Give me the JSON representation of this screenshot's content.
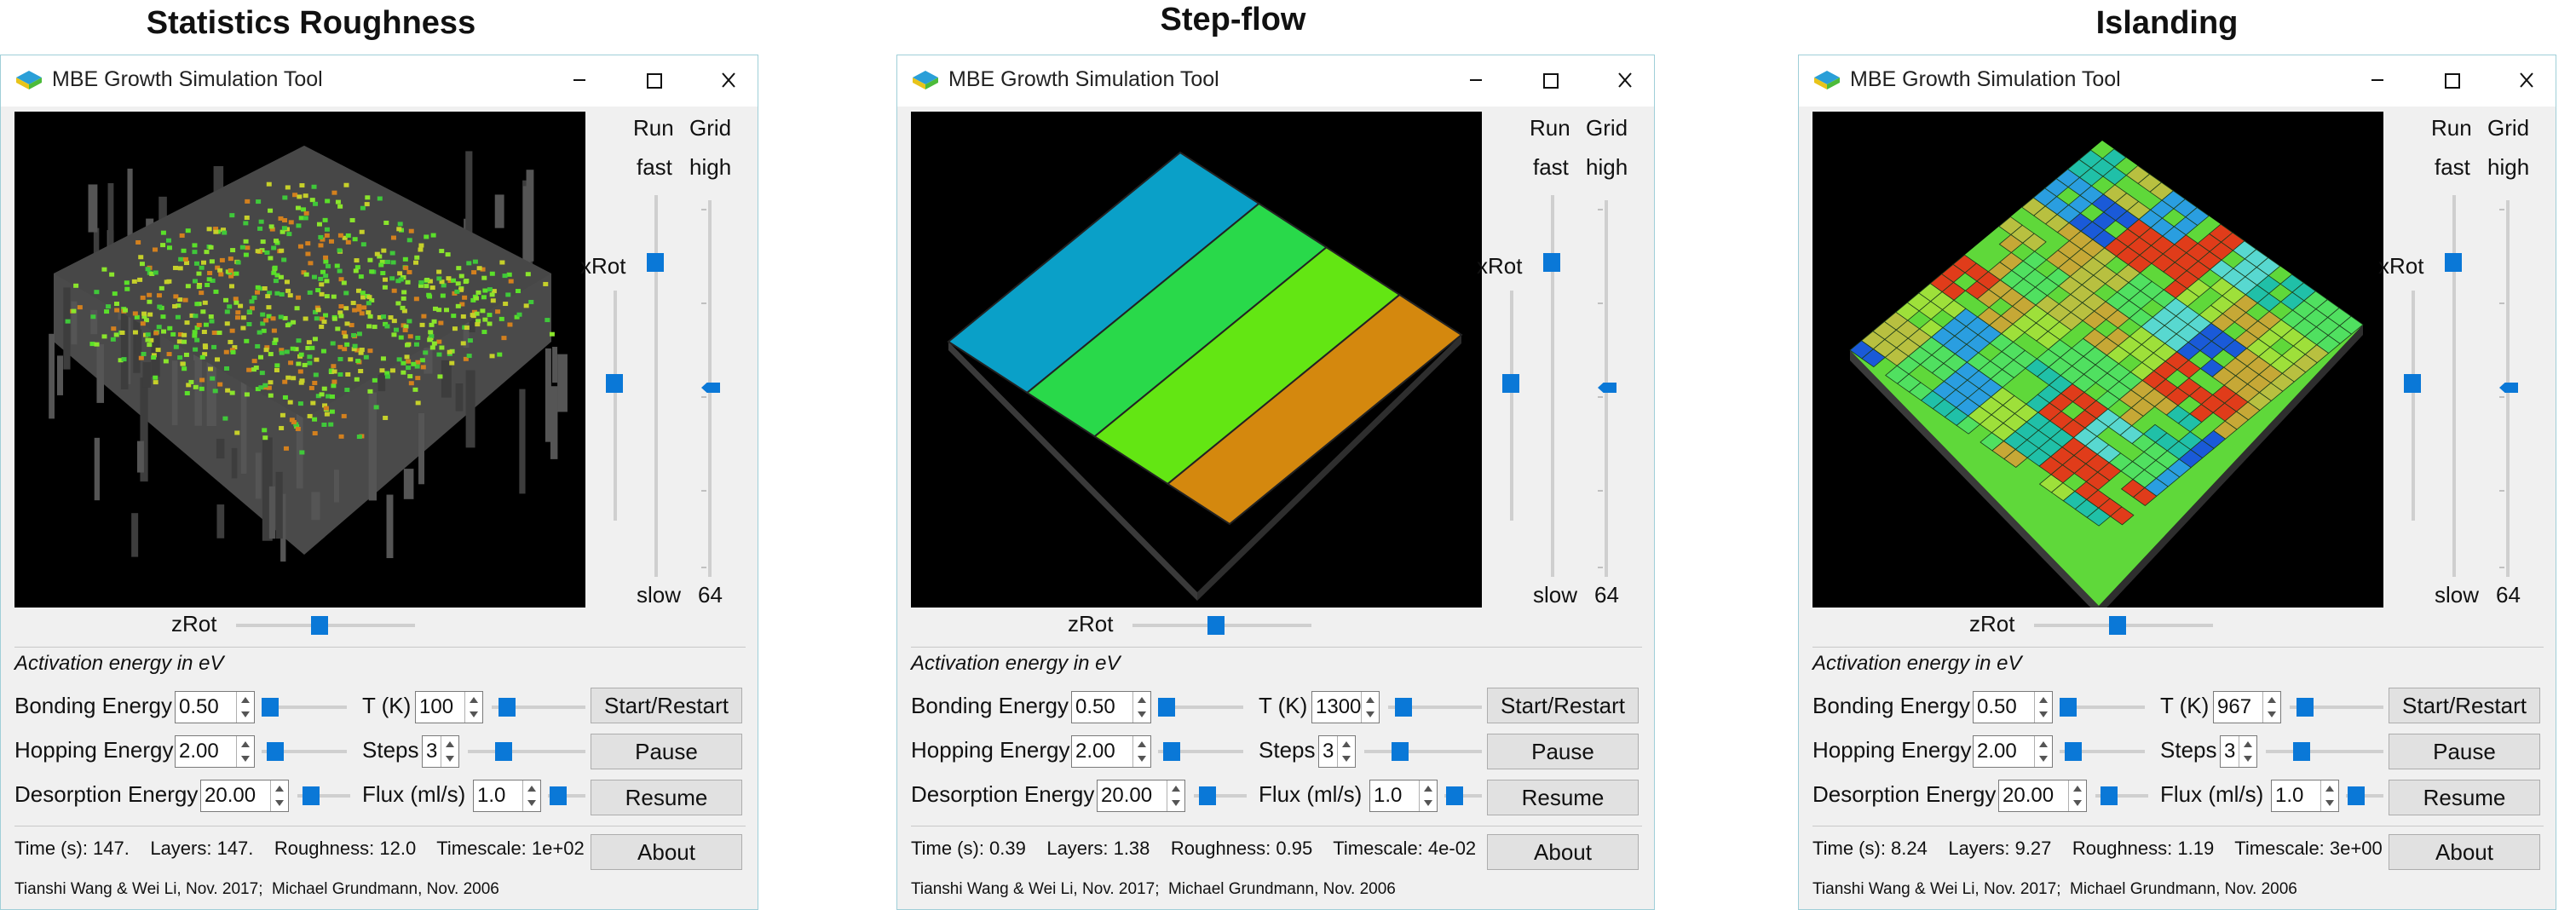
{
  "captions": [
    "Statistics Roughness",
    "Step-flow",
    "Islanding"
  ],
  "window_title": "MBE Growth Simulation Tool",
  "labels": {
    "run": "Run",
    "grid": "Grid",
    "fast": "fast",
    "high": "high",
    "slow": "slow",
    "xrot": "xRot",
    "zrot": "zRot",
    "activation": "Activation energy in eV",
    "bonding": "Bonding Energy",
    "hopping": "Hopping Energy",
    "desorption": "Desorption Energy",
    "t_k": "T (K)",
    "steps": "Steps",
    "flux": "Flux (ml/s)"
  },
  "buttons": {
    "start": "Start/Restart",
    "pause": "Pause",
    "resume": "Resume",
    "about": "About"
  },
  "credits": "Tianshi Wang & Wei Li, Nov. 2017;  Michael Grundmann, Nov. 2006",
  "windows": [
    {
      "grid_value": "64",
      "bonding": "0.50",
      "hopping": "2.00",
      "desorption": "20.00",
      "t_k": "100",
      "steps": "3",
      "flux": "1.0",
      "status": "Time (s): 147.    Layers: 147.    Roughness: 12.0    Timescale: 1e+02"
    },
    {
      "grid_value": "64",
      "bonding": "0.50",
      "hopping": "2.00",
      "desorption": "20.00",
      "t_k": "1300",
      "steps": "3",
      "flux": "1.0",
      "status": "Time (s): 0.39    Layers: 1.38    Roughness: 0.95    Timescale: 4e-02"
    },
    {
      "grid_value": "64",
      "bonding": "0.50",
      "hopping": "2.00",
      "desorption": "20.00",
      "t_k": "967",
      "steps": "3",
      "flux": "1.0",
      "status": "Time (s): 8.24    Layers: 9.27    Roughness: 1.19    Timescale: 3e+00"
    }
  ],
  "colors": {
    "slider_thumb": "#0a78d7",
    "viewport_bg": "#000000",
    "window_bg": "#f0f0f0"
  }
}
